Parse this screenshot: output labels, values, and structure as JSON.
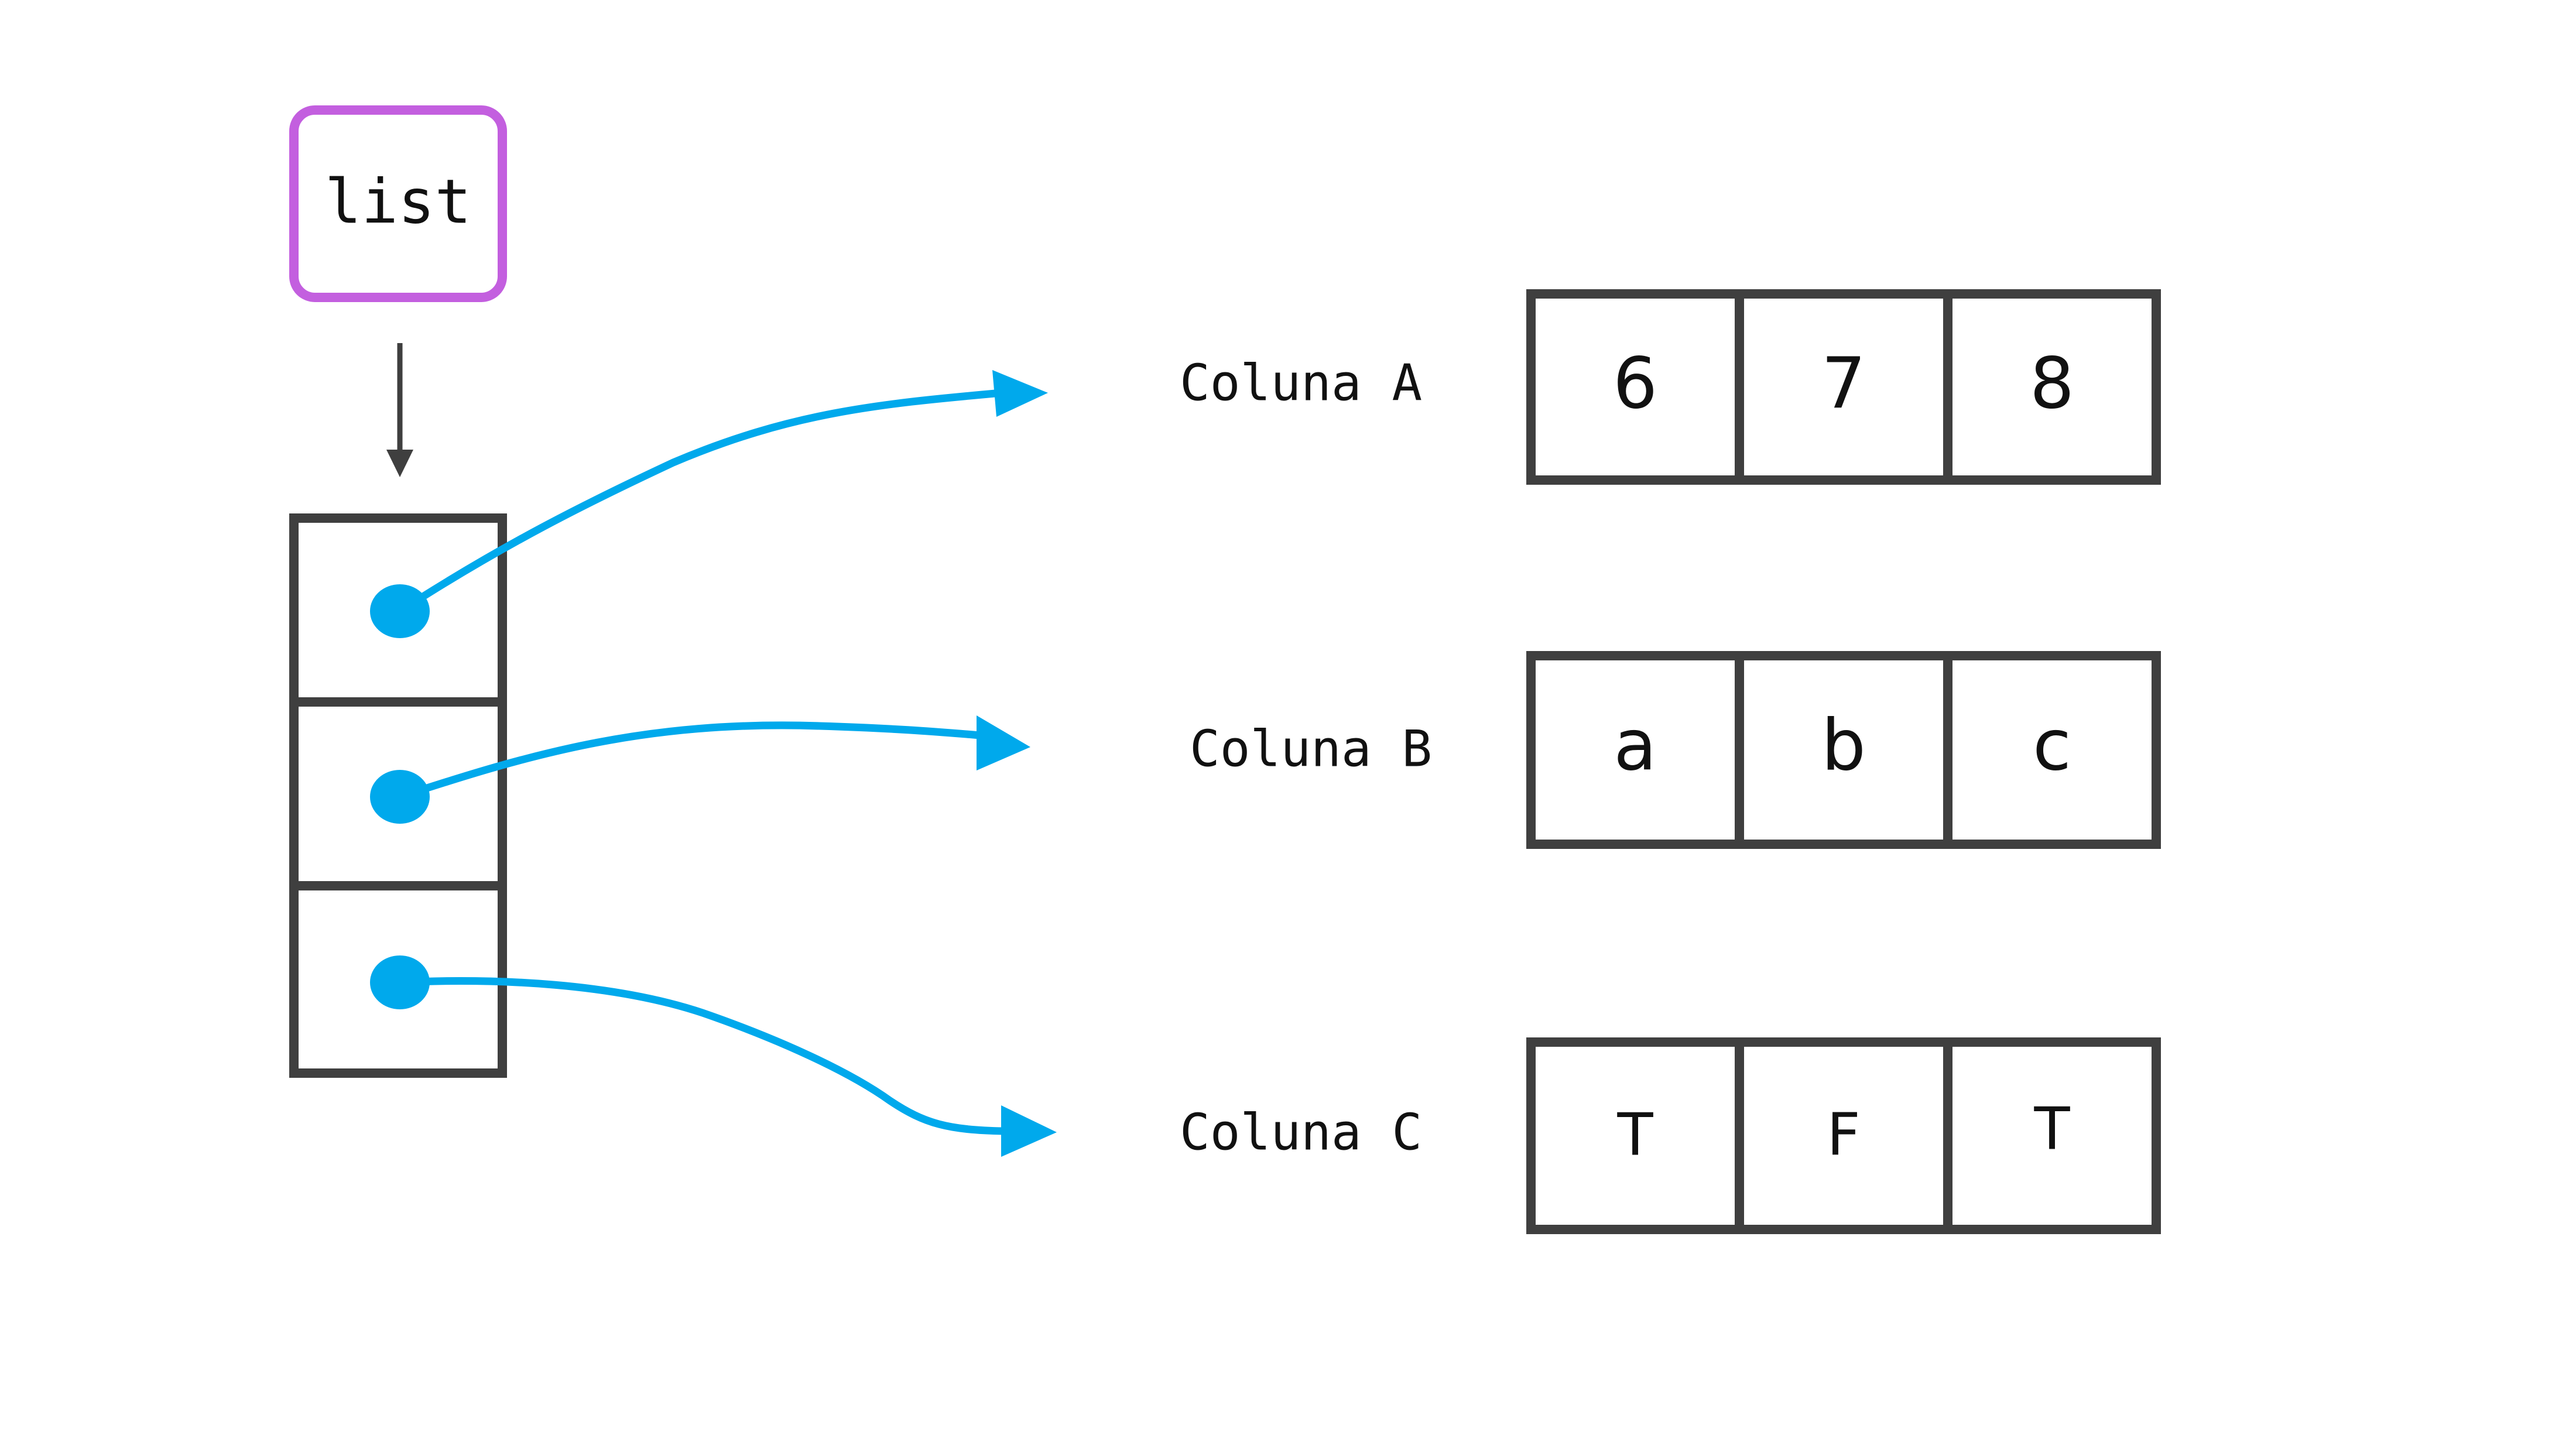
{
  "list_label": "list",
  "list_slot_count": 3,
  "columns": [
    {
      "label": "Coluna A",
      "values": [
        "6",
        "7",
        "8"
      ]
    },
    {
      "label": "Coluna B",
      "values": [
        "a",
        "b",
        "c"
      ]
    },
    {
      "label": "Coluna C",
      "values": [
        "T",
        "F",
        "T"
      ]
    }
  ],
  "colors": {
    "list_box_border": "#C35FDF",
    "box_border": "#3F3F3F",
    "pointer_arrow": "#00A9EC",
    "down_arrow": "#3F3F3F"
  }
}
